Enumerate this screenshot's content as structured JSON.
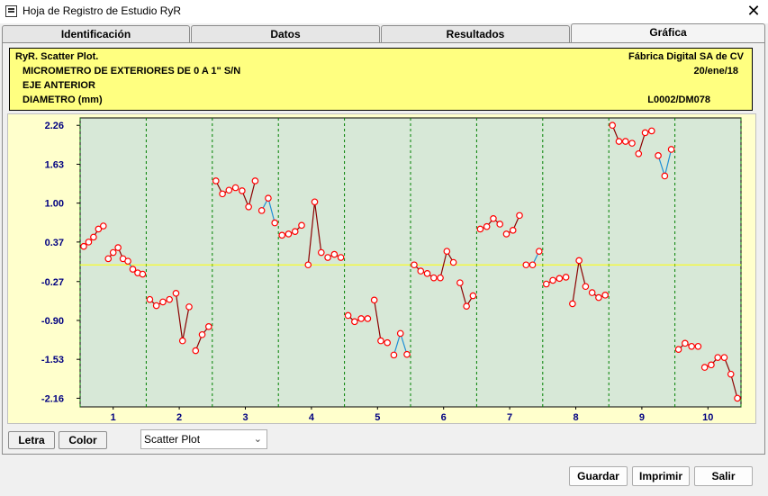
{
  "window": {
    "title": "Hoja de Registro de Estudio RyR",
    "app_icon": "document-icon",
    "close_symbol": "✕"
  },
  "tabs": [
    {
      "label": "Identificación",
      "active": false
    },
    {
      "label": "Datos",
      "active": false
    },
    {
      "label": "Resultados",
      "active": false
    },
    {
      "label": "Gráfica",
      "active": true
    }
  ],
  "header": {
    "chart_title": "RyR. Scatter Plot.",
    "company": "Fábrica Digital SA de CV",
    "instrument": "MICROMETRO DE EXTERIORES DE 0 A 1\" S/N",
    "date": "20/ene/18",
    "part": "EJE ANTERIOR",
    "characteristic": "DIAMETRO (mm)",
    "code": "L0002/DM078"
  },
  "buttons": {
    "letra": "Letra",
    "color": "Color",
    "guardar": "Guardar",
    "imprimir": "Imprimir",
    "salir": "Salir"
  },
  "plot_type_select": {
    "value": "Scatter Plot"
  },
  "colors": {
    "header_bg": "#ffff80",
    "plot_bg": "#d7e8d7",
    "outer_bg": "#ffffcc",
    "center_line": "#ffff00",
    "grid": "#008000",
    "marker": "#ff0000",
    "line_a": "#8b0000",
    "line_b": "#1f8fd6"
  },
  "chart_data": {
    "type": "scatter",
    "ylim": [
      -2.3,
      2.38
    ],
    "y_ticks": [
      "2.26",
      "1.63",
      "1.00",
      "0.37",
      "-0.27",
      "-0.90",
      "-1.53",
      "-2.16"
    ],
    "y_tick_values": [
      2.26,
      1.63,
      1.0,
      0.37,
      -0.27,
      -0.9,
      -1.53,
      -2.16
    ],
    "center_line": 0.0,
    "categories": [
      "1",
      "2",
      "3",
      "4",
      "5",
      "6",
      "7",
      "8",
      "9",
      "10"
    ],
    "parts": [
      {
        "part": "1",
        "groups": [
          [
            0.3,
            0.37,
            0.45,
            0.58,
            0.63
          ],
          [
            0.1,
            0.2,
            0.28,
            0.1
          ],
          [
            0.06,
            -0.07,
            -0.13,
            -0.15
          ]
        ]
      },
      {
        "part": "2",
        "groups": [
          [
            -0.56,
            -0.66,
            -0.6,
            -0.56
          ],
          [
            -0.46,
            -1.23,
            -0.68
          ],
          [
            -1.39,
            -1.13,
            -1.0
          ]
        ]
      },
      {
        "part": "3",
        "groups": [
          [
            1.36,
            1.15,
            1.21,
            1.25
          ],
          [
            1.2,
            0.94,
            1.36
          ],
          [
            0.88,
            1.08,
            0.68
          ]
        ]
      },
      {
        "part": "4",
        "groups": [
          [
            0.48,
            0.5,
            0.54,
            0.64
          ],
          [
            0.0,
            1.02,
            0.2
          ],
          [
            0.12,
            0.17,
            0.12
          ]
        ]
      },
      {
        "part": "5",
        "groups": [
          [
            -0.82,
            -0.92,
            -0.87,
            -0.87
          ],
          [
            -0.57,
            -1.23,
            -1.26
          ],
          [
            -1.46,
            -1.11,
            -1.45
          ]
        ]
      },
      {
        "part": "6",
        "groups": [
          [
            0.0,
            -0.1,
            -0.14,
            -0.21
          ],
          [
            -0.21,
            0.22,
            0.04
          ],
          [
            -0.29,
            -0.67,
            -0.5
          ]
        ]
      },
      {
        "part": "7",
        "groups": [
          [
            0.58,
            0.62,
            0.75,
            0.66
          ],
          [
            0.5,
            0.56,
            0.8
          ],
          [
            0.0,
            0.0,
            0.22
          ]
        ]
      },
      {
        "part": "8",
        "groups": [
          [
            -0.31,
            -0.25,
            -0.22,
            -0.2
          ],
          [
            -0.63,
            0.07,
            -0.35
          ],
          [
            -0.45,
            -0.53,
            -0.49
          ]
        ]
      },
      {
        "part": "9",
        "groups": [
          [
            2.26,
            2.0,
            2.0,
            1.97
          ],
          [
            1.8,
            2.14,
            2.17
          ],
          [
            1.77,
            1.44,
            1.87
          ]
        ]
      },
      {
        "part": "10",
        "groups": [
          [
            -1.37,
            -1.27,
            -1.32,
            -1.32
          ],
          [
            -1.66,
            -1.62,
            -1.5
          ],
          [
            -1.5,
            -1.77,
            -2.16
          ]
        ]
      }
    ]
  }
}
